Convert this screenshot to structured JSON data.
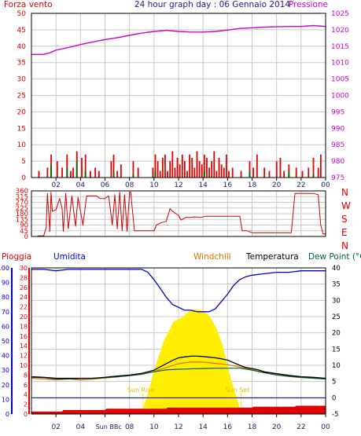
{
  "title": "24 hour graph day : 06 Gennaio 2014",
  "colors": {
    "wind": "#e00000",
    "gust": "#006400",
    "pressure": "#cc00cc",
    "direction": "#cc0000",
    "humidity": "#0000cc",
    "windchill": "#e07000",
    "temperature": "#000000",
    "dewpoint": "#006633",
    "rain": "#e00000",
    "sun": "#ffee00",
    "frame": "#000000",
    "grid": "#c8c8c8"
  },
  "hour_ticks": [
    "02",
    "04",
    "06",
    "08",
    "10",
    "12",
    "14",
    "16",
    "18",
    "20",
    "22",
    "00"
  ],
  "chart_data": [
    {
      "type": "line",
      "name": "wind-pressure",
      "left_label": "Forza vento",
      "right_label": "Pressione",
      "y_left": {
        "range": [
          0,
          50
        ],
        "ticks": [
          "0",
          "5",
          "10",
          "15",
          "20",
          "25",
          "30",
          "35",
          "40",
          "45",
          "50"
        ]
      },
      "y_right": {
        "range": [
          975,
          1025
        ],
        "ticks": [
          "975",
          "980",
          "985",
          "990",
          "995",
          "1000",
          "1005",
          "1010",
          "1015",
          "1020",
          "1025"
        ]
      },
      "pressure": {
        "x": [
          0,
          1,
          1.5,
          2,
          3,
          4,
          5,
          6,
          7,
          8,
          9,
          10,
          11,
          12,
          13,
          14,
          15,
          16,
          17,
          18,
          19,
          20,
          21,
          22,
          23,
          24
        ],
        "y": [
          1012.5,
          1012.5,
          1013,
          1013.8,
          1014.6,
          1015.5,
          1016.3,
          1017.0,
          1017.6,
          1018.3,
          1019.0,
          1019.5,
          1019.8,
          1019.5,
          1019.3,
          1019.3,
          1019.5,
          1019.9,
          1020.4,
          1020.6,
          1020.8,
          1020.9,
          1021.0,
          1021.0,
          1021.3,
          1021.0
        ]
      },
      "wind_bars": {
        "x": [
          0.6,
          1.3,
          1.6,
          2.1,
          2.5,
          2.9,
          3.2,
          3.4,
          3.7,
          4.1,
          4.4,
          4.8,
          5.2,
          5.5,
          6.5,
          6.7,
          7.0,
          7.3,
          8.3,
          8.7,
          9.9,
          10.1,
          10.3,
          10.5,
          10.7,
          10.9,
          11.1,
          11.3,
          11.5,
          11.7,
          11.9,
          12.1,
          12.3,
          12.5,
          12.7,
          12.9,
          13.1,
          13.3,
          13.5,
          13.7,
          13.9,
          14.1,
          14.3,
          14.5,
          14.7,
          14.9,
          15.1,
          15.3,
          15.5,
          15.7,
          15.9,
          16.1,
          16.4,
          17.1,
          17.8,
          18.1,
          18.4,
          19.0,
          19.4,
          20.0,
          20.3,
          20.6,
          21.0,
          21.6,
          22.1,
          22.6,
          23.0,
          23.4,
          23.6
        ],
        "y": [
          2,
          3,
          7,
          5,
          3,
          7,
          2,
          3,
          8,
          6,
          7,
          2,
          3,
          2,
          5,
          7,
          2,
          4,
          5,
          3,
          3,
          7,
          5,
          2,
          6,
          7,
          2,
          5,
          8,
          3,
          6,
          4,
          7,
          5,
          2,
          7,
          6,
          3,
          8,
          5,
          4,
          7,
          6,
          3,
          5,
          8,
          2,
          6,
          4,
          3,
          7,
          2,
          3,
          2,
          5,
          3,
          7,
          3,
          2,
          5,
          6,
          2,
          4,
          3,
          2,
          3,
          6,
          3,
          7
        ]
      },
      "gust_bars": {
        "x": [
          1.6,
          2.9,
          3.7,
          4.4,
          6.7,
          8.3,
          10.1,
          14.1,
          17.8,
          21.0,
          23.0
        ],
        "y": [
          4,
          3,
          5,
          2,
          2,
          1,
          2,
          2,
          2,
          2,
          1
        ]
      }
    },
    {
      "type": "line",
      "name": "wind-direction",
      "y_left": {
        "range": [
          0,
          360
        ],
        "ticks": [
          "0",
          "45",
          "90",
          "135",
          "180",
          "225",
          "270",
          "315",
          "360"
        ]
      },
      "y_right_labels": [
        "N",
        "W",
        "S",
        "E",
        "N"
      ],
      "direction": {
        "x": [
          0.5,
          1.0,
          1.2,
          1.3,
          1.5,
          1.6,
          1.7,
          2.0,
          2.3,
          2.5,
          2.6,
          2.8,
          3.0,
          3.3,
          3.5,
          3.6,
          3.8,
          4.0,
          4.2,
          4.5,
          5.0,
          5.3,
          5.6,
          6.0,
          6.3,
          6.6,
          6.8,
          7.0,
          7.2,
          7.4,
          7.6,
          7.8,
          8.0,
          8.1,
          8.4,
          8.7,
          9.0,
          9.5,
          10.0,
          10.2,
          10.6,
          11.0,
          11.3,
          11.5,
          11.8,
          12.0,
          12.2,
          12.6,
          13.0,
          13.3,
          13.8,
          14.2,
          14.6,
          15.0,
          15.5,
          16.2,
          17.0,
          17.2,
          17.6,
          18.0,
          18.4,
          19.0,
          19.5,
          20.0,
          20.5,
          21.0,
          21.2,
          21.5,
          21.8,
          22.5,
          23.0,
          23.4,
          23.6,
          23.8,
          24.0
        ],
        "y": [
          5,
          5,
          70,
          340,
          40,
          350,
          200,
          210,
          300,
          220,
          40,
          340,
          60,
          320,
          160,
          80,
          310,
          200,
          90,
          320,
          320,
          320,
          300,
          300,
          320,
          90,
          330,
          60,
          350,
          45,
          330,
          40,
          350,
          350,
          45,
          45,
          45,
          45,
          45,
          90,
          110,
          120,
          220,
          200,
          180,
          165,
          130,
          150,
          150,
          155,
          150,
          160,
          160,
          160,
          160,
          160,
          160,
          45,
          45,
          30,
          30,
          30,
          30,
          30,
          30,
          30,
          30,
          340,
          340,
          340,
          340,
          330,
          90,
          20,
          20
        ]
      }
    },
    {
      "type": "line",
      "name": "temperature-humidity",
      "labels": {
        "rain": "Pioggia",
        "humidity": "Umidita",
        "windchill": "Windchill",
        "temperature": "Temperatura",
        "dewpoint": "Dew Point (°C"
      },
      "y_humidity": {
        "range": [
          0,
          100
        ],
        "ticks": [
          "0",
          "10",
          "20",
          "30",
          "40",
          "50",
          "60",
          "70",
          "80",
          "90",
          "100"
        ]
      },
      "y_rain": {
        "range": [
          0,
          30
        ],
        "ticks": [
          "0",
          "2",
          "4",
          "6",
          "8",
          "10",
          "12",
          "14",
          "16",
          "18",
          "20",
          "22",
          "24",
          "26",
          "28",
          "30"
        ]
      },
      "y_temperature": {
        "range": [
          -5,
          40
        ],
        "ticks": [
          "-5",
          "0",
          "5",
          "10",
          "15",
          "20",
          "25",
          "30",
          "35",
          "40"
        ]
      },
      "sun_labels": {
        "rise": "Sun Rise",
        "set": "Sun Set",
        "axis_note": "Sun BBc"
      },
      "humidity": {
        "x": [
          0,
          1,
          2,
          3,
          4,
          5,
          6,
          7,
          8,
          9,
          9.5,
          10,
          10.5,
          11,
          11.5,
          12,
          12.5,
          13,
          13.5,
          14,
          14.5,
          15,
          15.5,
          16,
          16.5,
          17,
          17.5,
          18,
          19,
          20,
          21,
          22,
          23,
          24
        ],
        "y": [
          99,
          99,
          98,
          99,
          99,
          99,
          99,
          99,
          99,
          99,
          97,
          92,
          86,
          80,
          75,
          73,
          71,
          71,
          70,
          70,
          70,
          72,
          77,
          82,
          88,
          92,
          94,
          95,
          96,
          97,
          97,
          98,
          98,
          98
        ]
      },
      "temperature": {
        "x": [
          0,
          1,
          2,
          3,
          4,
          5,
          6,
          7,
          8,
          9,
          10,
          10.5,
          11,
          11.5,
          12,
          12.5,
          13,
          13.5,
          14,
          14.5,
          15,
          15.5,
          16,
          16.5,
          17,
          17.5,
          18,
          18.5,
          19,
          20,
          21,
          22,
          23,
          24
        ],
        "y": [
          6.5,
          6.3,
          6,
          6,
          6,
          6,
          6.3,
          6.7,
          7,
          7.5,
          8.5,
          9.5,
          10.5,
          11.5,
          12.3,
          12.6,
          12.8,
          12.8,
          12.7,
          12.5,
          12.3,
          12,
          11.6,
          10.8,
          10,
          9.3,
          9,
          8.6,
          8,
          7.4,
          6.9,
          6.5,
          6.3,
          6
        ]
      },
      "windchill": {
        "x": [
          0,
          1,
          2,
          3,
          4,
          5,
          6,
          7,
          8,
          9,
          10,
          11,
          12,
          13,
          14,
          15,
          16,
          17,
          18,
          19,
          20,
          21,
          22,
          23,
          24
        ],
        "y": [
          6,
          5.8,
          5.5,
          5.8,
          5.5,
          5.7,
          6.1,
          6.4,
          6.8,
          7.2,
          8.1,
          9.3,
          10.5,
          11,
          11,
          10.6,
          10.2,
          9.5,
          8.7,
          7.8,
          7.1,
          6.6,
          6.2,
          6,
          5.8
        ]
      },
      "dewpoint": {
        "x": [
          0,
          1,
          2,
          3,
          4,
          5,
          6,
          7,
          8,
          9,
          10,
          11,
          12,
          13,
          14,
          15,
          16,
          17,
          18,
          19,
          20,
          21,
          22,
          23,
          24
        ],
        "y": [
          6.3,
          6.2,
          5.8,
          5.8,
          5.9,
          6,
          6.2,
          6.5,
          6.8,
          7.3,
          8,
          8.6,
          8.8,
          8.9,
          9,
          9.1,
          9.1,
          9.1,
          8.5,
          7.7,
          7,
          6.6,
          6.3,
          6,
          5.8
        ]
      },
      "sun": {
        "x": [
          9.1,
          9.6,
          10,
          10.4,
          10.8,
          11.2,
          11.6,
          12,
          12.4,
          12.8,
          13.2,
          13.6,
          14,
          14.4,
          14.8,
          15.2,
          15.6,
          16,
          16.4,
          16.8,
          17.1
        ],
        "y": [
          1,
          5,
          9,
          12,
          15,
          17,
          19,
          19.5,
          20,
          21,
          21.5,
          21.5,
          21,
          20.5,
          19,
          17,
          14,
          10,
          6,
          3,
          0
        ]
      },
      "rain": {
        "x": [
          0,
          2.5,
          2.6,
          6,
          6.1,
          11,
          11.1,
          18,
          18.1,
          21.5,
          21.6,
          24
        ],
        "y": [
          0.5,
          0.5,
          0.8,
          0.8,
          1.1,
          1.1,
          1.3,
          1.3,
          1.5,
          1.5,
          1.7,
          1.7
        ]
      }
    }
  ]
}
